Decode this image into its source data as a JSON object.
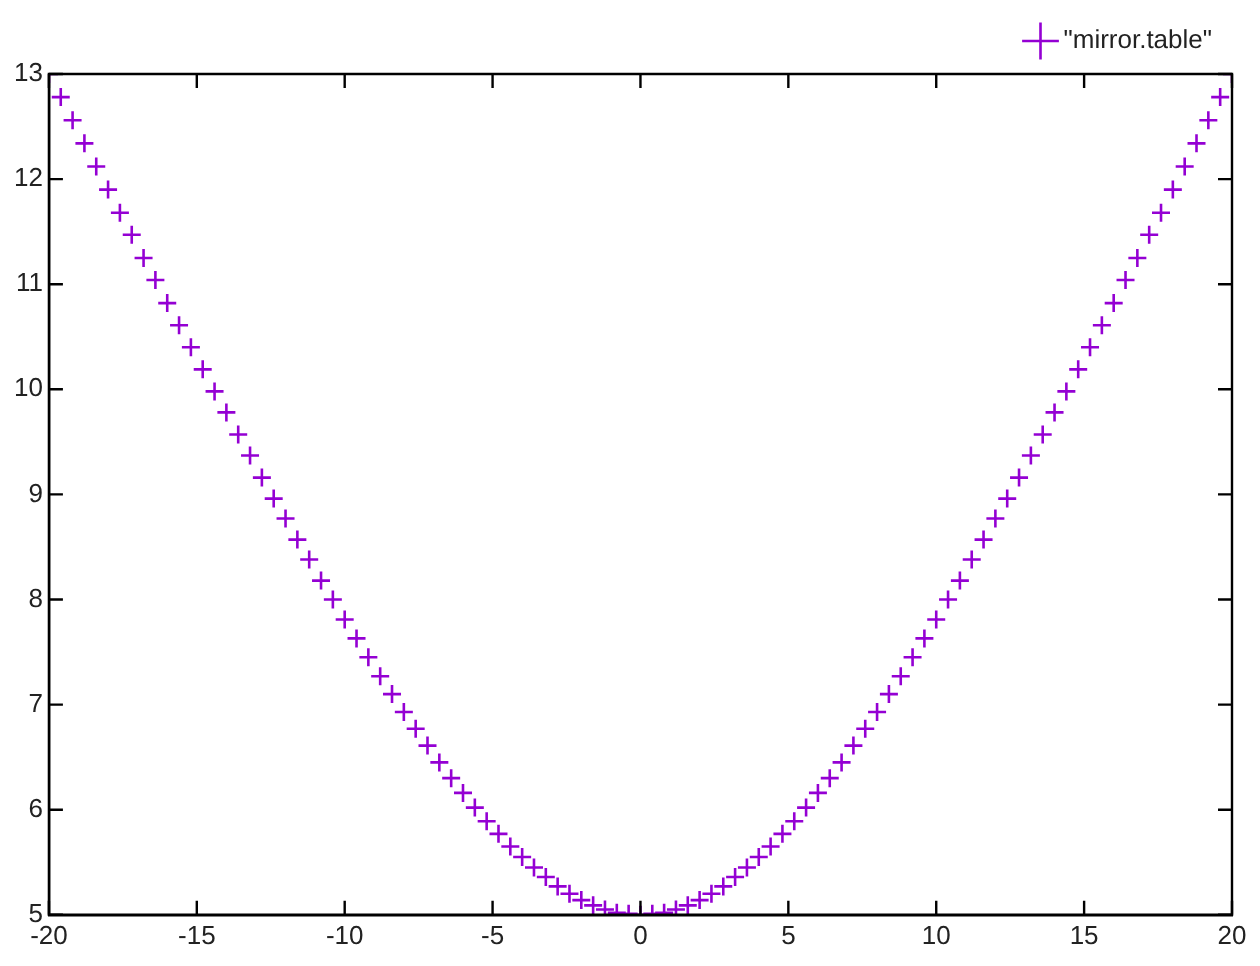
{
  "chart_data": {
    "type": "scatter",
    "marker": "cross",
    "legend": "top right",
    "grid": false,
    "xlim": [
      -20,
      20
    ],
    "xticks": [
      -20,
      -15,
      -10,
      -5,
      0,
      5,
      10,
      15,
      20
    ],
    "ylim": [
      5,
      13
    ],
    "yticks": [
      5,
      6,
      7,
      8,
      9,
      10,
      11,
      12,
      13
    ],
    "x": [
      -20,
      -19.6,
      -19.2,
      -18.8,
      -18.4,
      -18,
      -17.6,
      -17.2,
      -16.8,
      -16.4,
      -16,
      -15.6,
      -15.2,
      -14.8,
      -14.4,
      -14,
      -13.6,
      -13.2,
      -12.8,
      -12.4,
      -12,
      -11.6,
      -11.2,
      -10.8,
      -10.4,
      -10,
      -9.6,
      -9.2,
      -8.8,
      -8.4,
      -8,
      -7.6,
      -7.2,
      -6.8,
      -6.4,
      -6,
      -5.6,
      -5.2,
      -4.8,
      -4.4,
      -4,
      -3.6,
      -3.2,
      -2.8,
      -2.4,
      -2,
      -1.6,
      -1.2,
      -0.8,
      -0.4,
      0,
      0.4,
      0.8,
      1.2,
      1.6,
      2,
      2.4,
      2.8,
      3.2,
      3.6,
      4,
      4.4,
      4.8,
      5.2,
      5.6,
      6,
      6.4,
      6.8,
      7.2,
      7.6,
      8,
      8.4,
      8.8,
      9.2,
      9.6,
      10,
      10.4,
      10.8,
      11.2,
      11.6,
      12,
      12.4,
      12.8,
      13.2,
      13.6,
      14,
      14.4,
      14.8,
      15.2,
      15.6,
      16,
      16.4,
      16.8,
      17.2,
      17.6,
      18,
      18.4,
      18.8,
      19.2,
      19.6,
      20
    ],
    "series": [
      {
        "name": "\"mirror.table\"",
        "color": "#9400d3",
        "values": [
          13,
          12.78,
          12.56,
          12.34,
          12.12,
          11.9,
          11.68,
          11.47,
          11.25,
          11.04,
          10.82,
          10.61,
          10.4,
          10.19,
          9.98,
          9.78,
          9.57,
          9.37,
          9.16,
          8.96,
          8.77,
          8.57,
          8.38,
          8.18,
          8,
          7.81,
          7.63,
          7.45,
          7.27,
          7.1,
          6.93,
          6.77,
          6.61,
          6.45,
          6.3,
          6.16,
          6.02,
          5.89,
          5.77,
          5.65,
          5.55,
          5.45,
          5.36,
          5.27,
          5.2,
          5.14,
          5.09,
          5.05,
          5.02,
          5.01,
          5,
          5.01,
          5.02,
          5.05,
          5.09,
          5.14,
          5.2,
          5.27,
          5.36,
          5.45,
          5.55,
          5.65,
          5.77,
          5.89,
          6.02,
          6.16,
          6.3,
          6.45,
          6.61,
          6.77,
          6.93,
          7.1,
          7.27,
          7.45,
          7.63,
          7.81,
          8,
          8.18,
          8.38,
          8.57,
          8.77,
          8.96,
          9.16,
          9.37,
          9.57,
          9.78,
          9.98,
          10.19,
          10.4,
          10.61,
          10.82,
          11.04,
          11.25,
          11.47,
          11.68,
          11.9,
          12.12,
          12.34,
          12.56,
          12.78,
          13
        ]
      }
    ]
  }
}
